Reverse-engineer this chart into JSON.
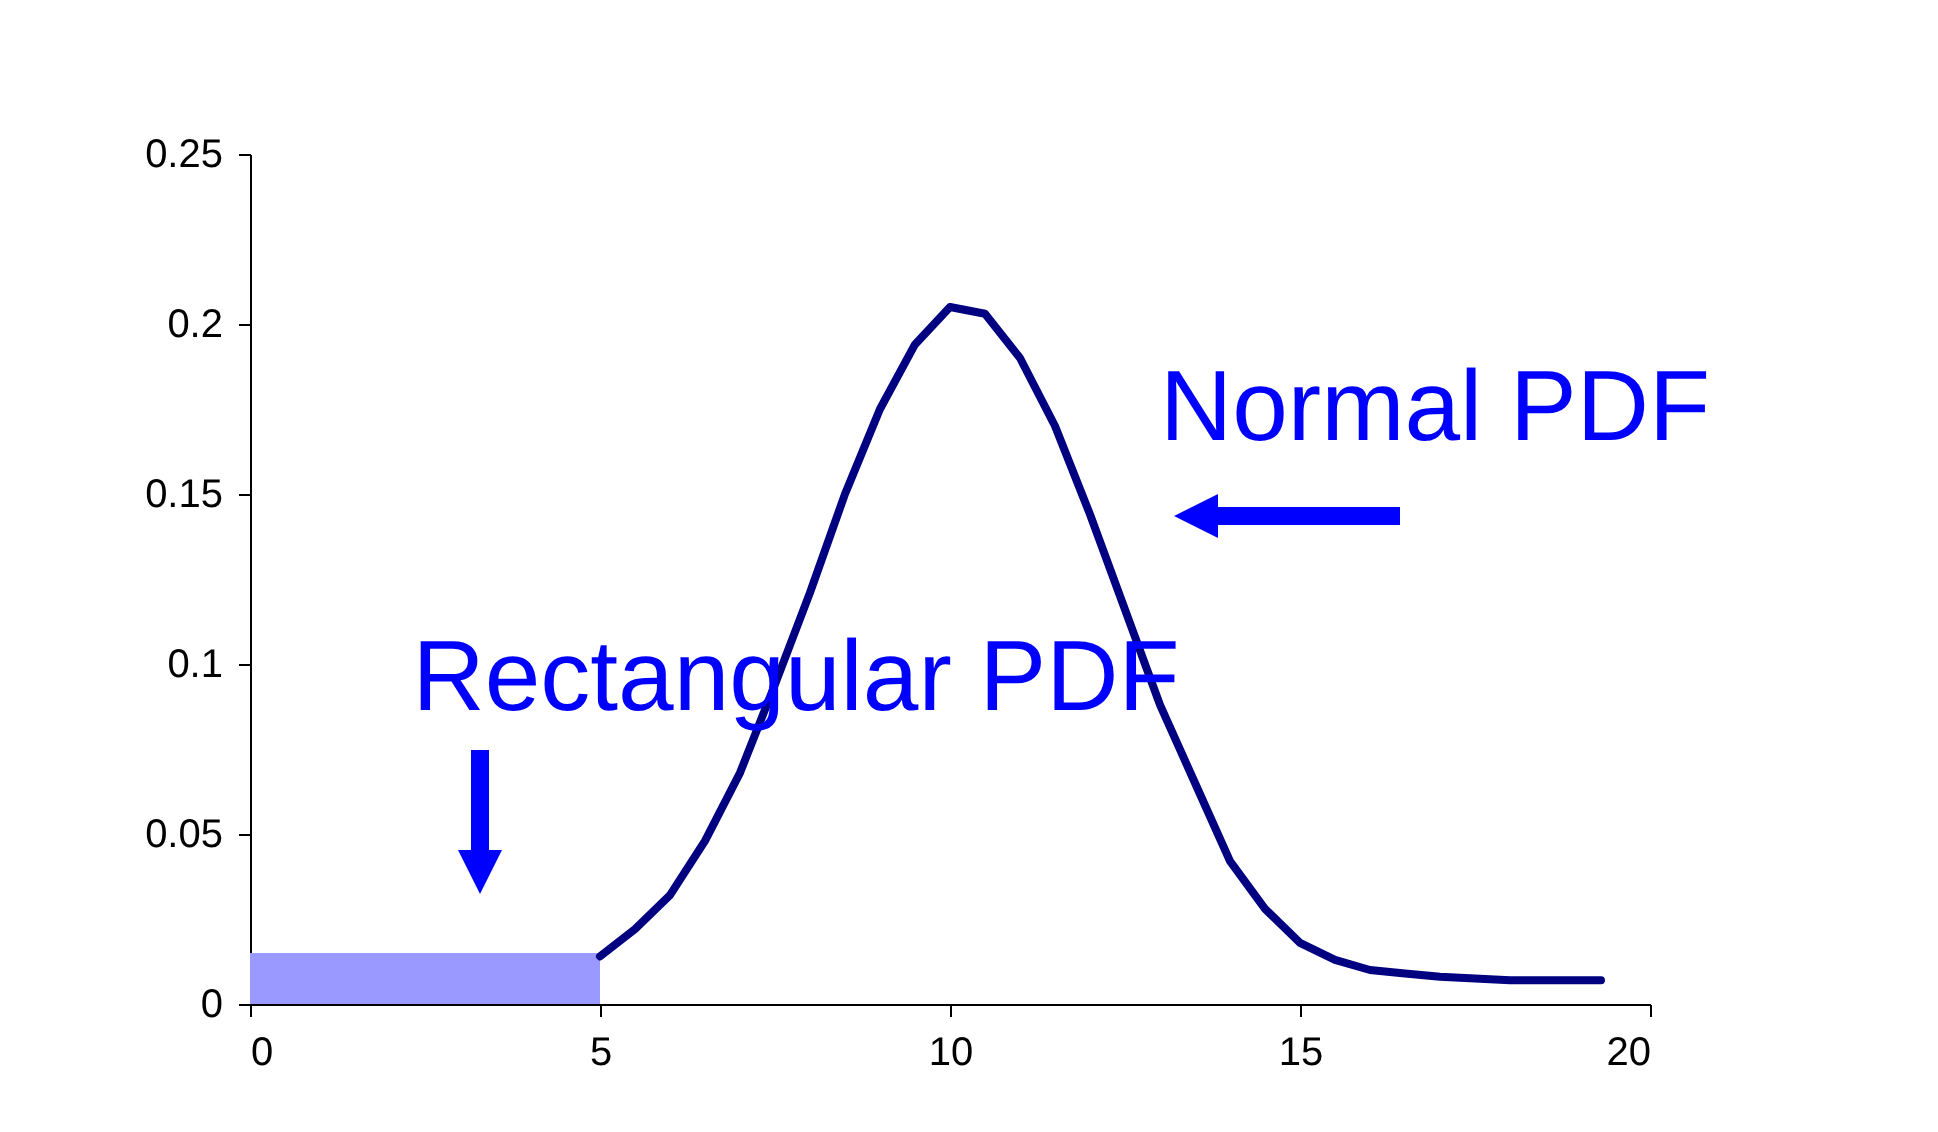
{
  "chart_data": {
    "type": "line",
    "series": [
      {
        "type": "area",
        "color": "#9999ff",
        "x": [
          0,
          5
        ],
        "values": [
          0.015,
          0.015
        ]
      },
      {
        "color": "#000080",
        "x": [
          5,
          5.5,
          6,
          6.5,
          7,
          7.5,
          8,
          8.5,
          9,
          9.5,
          10,
          10.5,
          11,
          11.5,
          12,
          12.5,
          13,
          13.5,
          14,
          14.5,
          15,
          15.5,
          16,
          16.5,
          17,
          18,
          19.3
        ],
        "values": [
          0.014,
          0.022,
          0.032,
          0.048,
          0.068,
          0.094,
          0.121,
          0.15,
          0.175,
          0.194,
          0.205,
          0.203,
          0.19,
          0.17,
          0.144,
          0.116,
          0.088,
          0.065,
          0.042,
          0.028,
          0.018,
          0.013,
          0.01,
          0.009,
          0.008,
          0.007,
          0.007
        ]
      }
    ],
    "annotations": [
      "Normal PDF",
      "Rectangular PDF"
    ],
    "xlim": [
      0,
      20
    ],
    "xticks": [
      0,
      5,
      10,
      15,
      20
    ],
    "ylim": [
      0,
      0.25
    ],
    "yticks": [
      0,
      0.05,
      0.1,
      0.15,
      0.2,
      0.25
    ],
    "grid": false
  }
}
